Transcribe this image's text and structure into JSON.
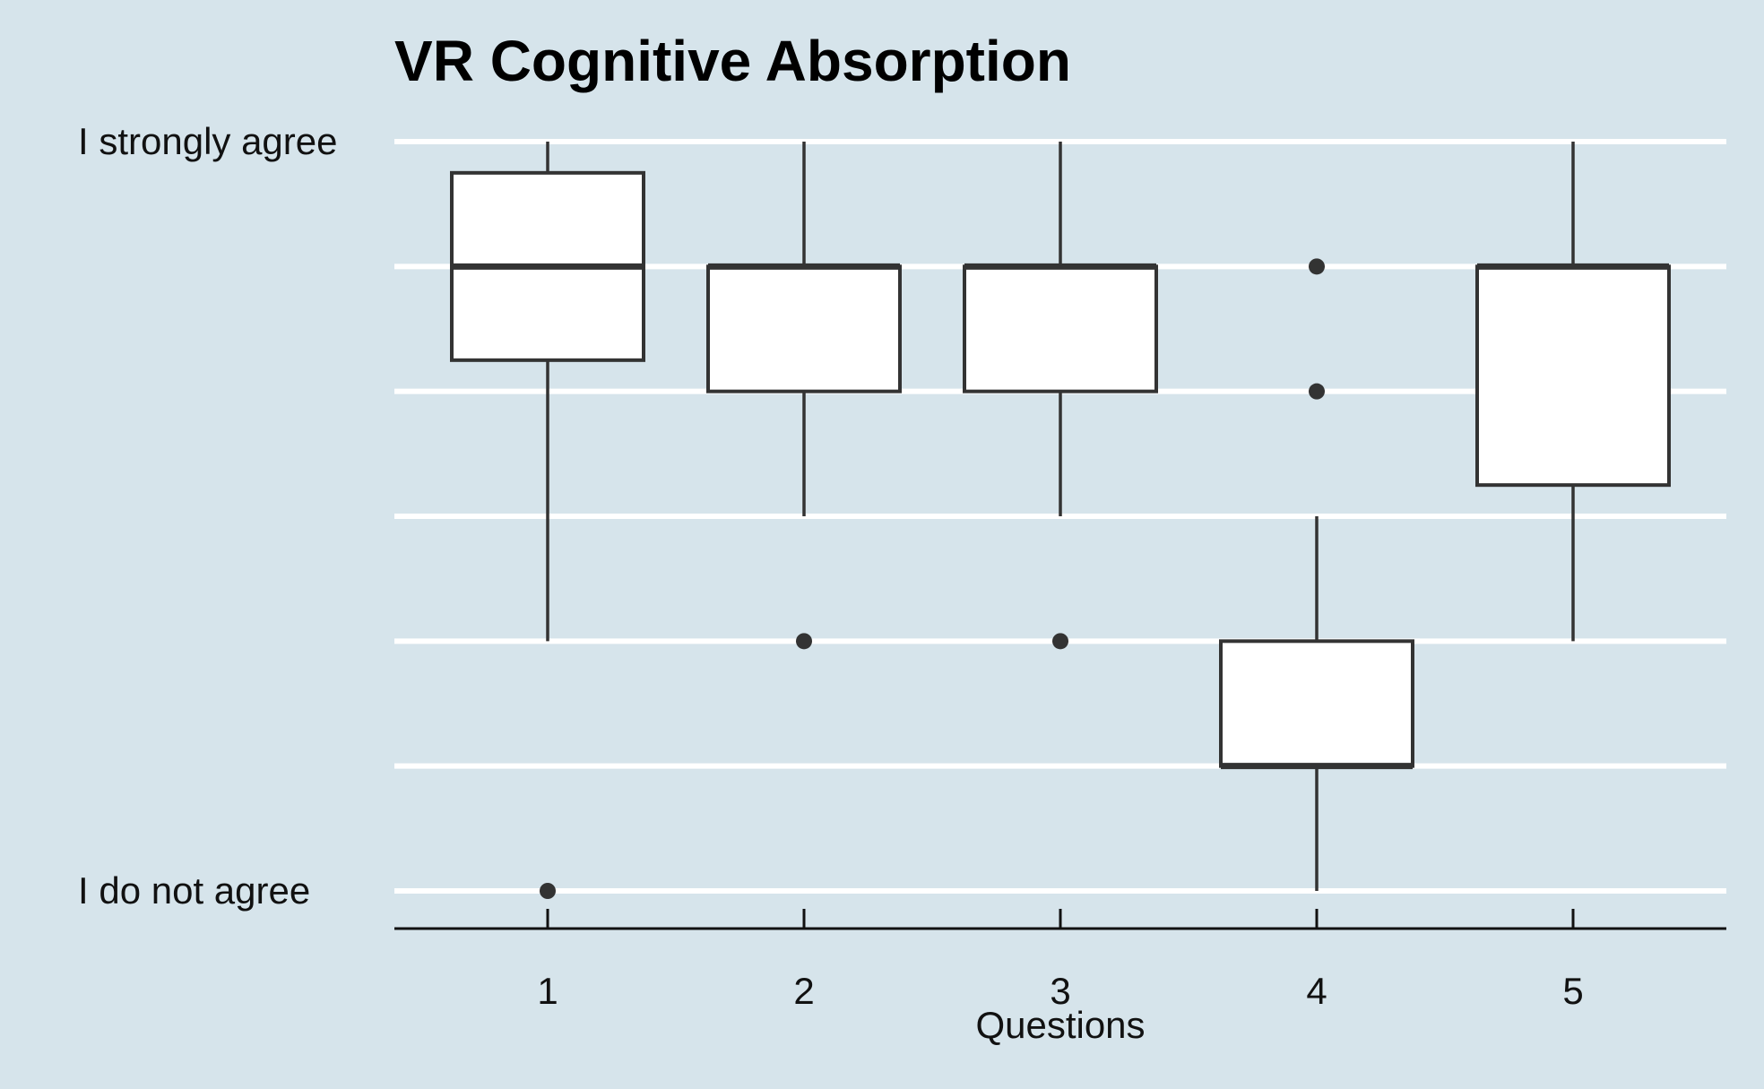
{
  "chart_data": {
    "type": "boxplot",
    "title": "VR Cognitive Absorption",
    "xlabel": "Questions",
    "ylabel": "",
    "categories": [
      "1",
      "2",
      "3",
      "4",
      "5"
    ],
    "ylim": [
      1,
      7
    ],
    "y_tick_labels": [
      {
        "value": 7,
        "label": "I strongly agree"
      },
      {
        "value": 1,
        "label": "I do not agree"
      }
    ],
    "grid_values": [
      1,
      2,
      3,
      4,
      5,
      6,
      7
    ],
    "boxes": [
      {
        "category": "1",
        "whisker_low": 3,
        "q1": 5.25,
        "median": 6,
        "q3": 6.75,
        "whisker_high": 7,
        "outliers": [
          1
        ]
      },
      {
        "category": "2",
        "whisker_low": 4,
        "q1": 5,
        "median": 6,
        "q3": 6,
        "whisker_high": 7,
        "outliers": [
          3
        ]
      },
      {
        "category": "3",
        "whisker_low": 4,
        "q1": 5,
        "median": 6,
        "q3": 6,
        "whisker_high": 7,
        "outliers": [
          3
        ]
      },
      {
        "category": "4",
        "whisker_low": 1,
        "q1": 2,
        "median": 2,
        "q3": 3,
        "whisker_high": 4,
        "outliers": [
          5,
          6
        ]
      },
      {
        "category": "5",
        "whisker_low": 3,
        "q1": 4.25,
        "median": 6,
        "q3": 6,
        "whisker_high": 7,
        "outliers": []
      }
    ]
  }
}
